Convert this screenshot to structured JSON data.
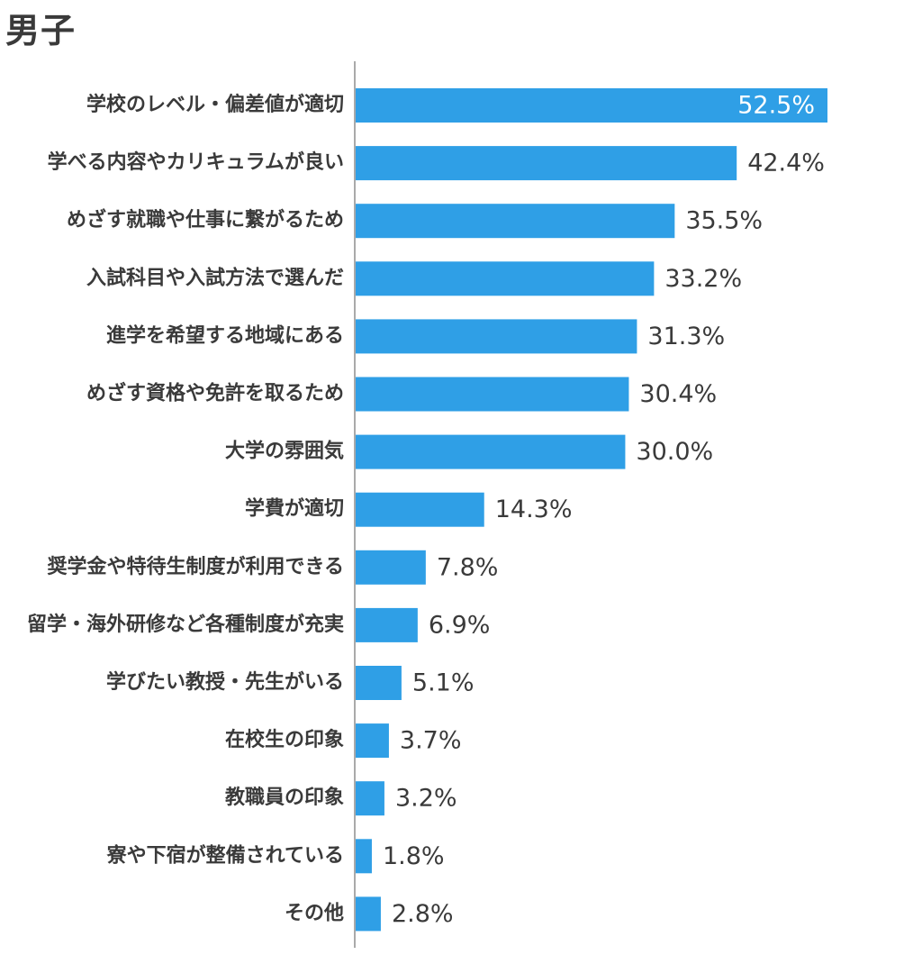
{
  "chart_data": {
    "type": "bar",
    "orientation": "horizontal",
    "title": "男子",
    "categories": [
      "学校のレベル・偏差値が適切",
      "学べる内容やカリキュラムが良い",
      "めざす就職や仕事に繋がるため",
      "入試科目や入試方法で選んだ",
      "進学を希望する地域にある",
      "めざす資格や免許を取るため",
      "大学の雰囲気",
      "学費が適切",
      "奨学金や特待生制度が利用できる",
      "留学・海外研修など各種制度が充実",
      "学びたい教授・先生がいる",
      "在校生の印象",
      "教職員の印象",
      "寮や下宿が整備されている",
      "その他"
    ],
    "values": [
      52.5,
      42.4,
      35.5,
      33.2,
      31.3,
      30.4,
      30.0,
      14.3,
      7.8,
      6.9,
      5.1,
      3.7,
      3.2,
      1.8,
      2.8
    ],
    "value_labels": [
      "52.5%",
      "42.4%",
      "35.5%",
      "33.2%",
      "31.3%",
      "30.4%",
      "30.0%",
      "14.3%",
      "7.8%",
      "6.9%",
      "5.1%",
      "3.7%",
      "3.2%",
      "1.8%",
      "2.8%"
    ],
    "xlim": [
      0,
      52.5
    ],
    "bar_color": "#2f9fe6",
    "grid": false,
    "legend": "none"
  }
}
